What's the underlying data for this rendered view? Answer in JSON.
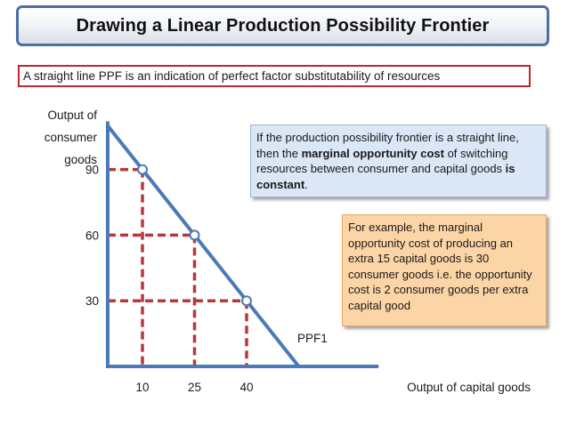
{
  "header": {
    "title": "Drawing a Linear Production Possibility Frontier"
  },
  "subtitle": {
    "text": "A straight line PPF is an indication of perfect factor substitutability of resources"
  },
  "note_blue": {
    "part1": "If the production possibility frontier is a straight line, then the ",
    "bold1": "marginal opportunity cost",
    "part2": " of switching resources between consumer and capital goods ",
    "bold2": "is constant",
    "part3": "."
  },
  "note_orange": {
    "text": "For example, the marginal opportunity cost of producing an extra 15 capital goods is 30 consumer goods i.e. the opportunity cost is 2 consumer goods per extra capital good"
  },
  "chart_data": {
    "type": "line",
    "ylabel_lines": [
      "Output of",
      "consumer",
      "goods"
    ],
    "xlabel": "Output of capital goods",
    "series": [
      {
        "name": "PPF1",
        "x": [
          0,
          55
        ],
        "y": [
          110,
          0
        ]
      }
    ],
    "points": [
      {
        "x": 10,
        "y": 90
      },
      {
        "x": 25,
        "y": 60
      },
      {
        "x": 40,
        "y": 30
      }
    ],
    "x_ticks": [
      10,
      25,
      40
    ],
    "y_ticks": [
      30,
      60,
      90
    ],
    "xlim": [
      0,
      78
    ],
    "ylim": [
      0,
      112
    ],
    "grid": false,
    "colors": {
      "axis": "#4a7ab8",
      "line": "#4a7ab8",
      "guide": "#b5393b",
      "point_fill": "#ffffff"
    }
  }
}
